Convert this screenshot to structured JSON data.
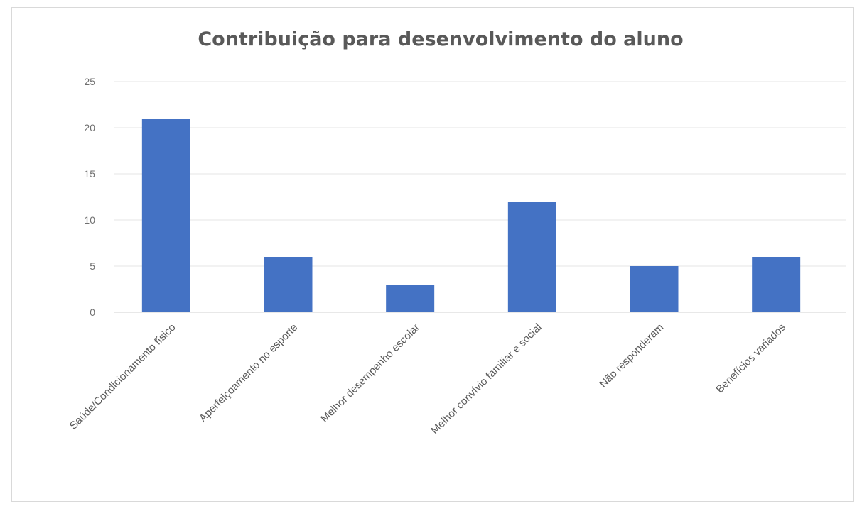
{
  "chart_data": {
    "type": "bar",
    "title": "Contribuição para desenvolvimento do aluno",
    "categories": [
      "Saúde/Condicionamento físico",
      "Aperfeiçoamento no esporte",
      "Melhor desempenho escolar",
      "Melhor convívio familiar e social",
      "Não responderam",
      "Benefícios variados"
    ],
    "values": [
      21,
      6,
      3,
      12,
      5,
      6
    ],
    "yticks": [
      "0",
      "5",
      "10",
      "15",
      "20",
      "25"
    ],
    "ylim": [
      0,
      25
    ],
    "xlabel": "",
    "ylabel": "",
    "grid": true,
    "legend": "none",
    "bar_color": "#4472c4"
  }
}
